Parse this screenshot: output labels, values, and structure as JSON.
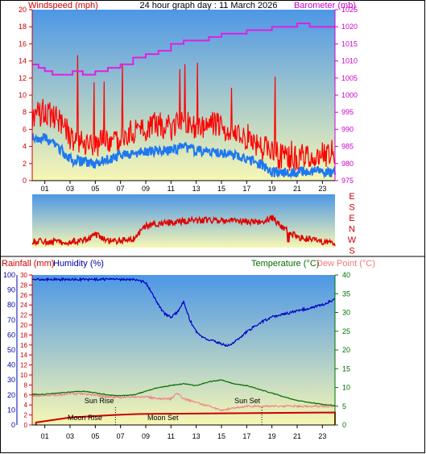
{
  "header": {
    "title": "24 hour graph day : 11 March 2026",
    "left_axis_label": "Windspeed (mph)",
    "right_axis_label": "Barometer (mb)"
  },
  "bottom_header": {
    "rainfall_label": "Rainfall (mm)",
    "humidity_label": "Humidity (%)",
    "temperature_label": "Temperature (°C)",
    "dewpoint_label": "Dew Point (°C)"
  },
  "direction_labels": [
    "E",
    "S",
    "E",
    "N",
    "W",
    "S"
  ],
  "events": {
    "sun_rise": "Sun Rise",
    "sun_set": "Sun Set",
    "moon_rise": "Moon Rise",
    "moon_set": "Moon Set"
  },
  "colors": {
    "wind_gust": "#ff0000",
    "wind_avg": "#1e78f0",
    "barometer": "#e020e0",
    "direction": "#e00000",
    "humidity": "#0000c0",
    "temperature": "#007000",
    "dewpoint": "#ee8888",
    "rainfall": "#cc0000",
    "sky_top": "#4d97e6",
    "sky_bottom": "#f7f7b4"
  },
  "chart_data": [
    {
      "type": "line",
      "name": "wind-barometer",
      "x_ticks": [
        "01",
        "03",
        "05",
        "07",
        "09",
        "11",
        "13",
        "15",
        "17",
        "19",
        "21",
        "23"
      ],
      "xlim": [
        0,
        24
      ],
      "left_axis": {
        "ylim": [
          0,
          20
        ],
        "ticks": [
          0,
          2,
          4,
          6,
          8,
          10,
          12,
          14,
          16,
          18,
          20
        ]
      },
      "right_axis": {
        "ylim": [
          975,
          1025
        ],
        "ticks": [
          975,
          980,
          985,
          990,
          995,
          1000,
          1005,
          1010,
          1015,
          1020,
          1025
        ]
      },
      "barometer_points": [
        [
          0,
          1009
        ],
        [
          0.5,
          1008
        ],
        [
          1,
          1007
        ],
        [
          1.6,
          1006
        ],
        [
          2.5,
          1006
        ],
        [
          3.2,
          1007
        ],
        [
          4,
          1006
        ],
        [
          5,
          1007
        ],
        [
          6,
          1008
        ],
        [
          7,
          1009
        ],
        [
          8,
          1011
        ],
        [
          9,
          1012
        ],
        [
          10,
          1013
        ],
        [
          11,
          1015
        ],
        [
          12,
          1016
        ],
        [
          13,
          1016
        ],
        [
          14,
          1017
        ],
        [
          15,
          1018
        ],
        [
          16,
          1018
        ],
        [
          17,
          1019
        ],
        [
          18,
          1019
        ],
        [
          19,
          1020
        ],
        [
          20,
          1020
        ],
        [
          21,
          1021
        ],
        [
          22,
          1020
        ],
        [
          24,
          1020
        ]
      ],
      "gust_profile": [
        [
          0,
          7
        ],
        [
          1,
          8
        ],
        [
          2,
          7
        ],
        [
          3,
          5
        ],
        [
          4,
          4.5
        ],
        [
          5,
          4
        ],
        [
          6,
          4.5
        ],
        [
          7,
          5
        ],
        [
          8,
          5.5
        ],
        [
          9,
          6
        ],
        [
          10,
          6.5
        ],
        [
          11,
          6
        ],
        [
          12,
          6.5
        ],
        [
          13,
          6
        ],
        [
          14,
          6.5
        ],
        [
          15,
          6
        ],
        [
          16,
          5.5
        ],
        [
          17,
          5
        ],
        [
          18,
          4
        ],
        [
          19,
          3
        ],
        [
          20,
          2.5
        ],
        [
          21,
          2.5
        ],
        [
          22,
          3
        ],
        [
          23,
          3
        ],
        [
          24,
          3
        ]
      ],
      "avg_profile": [
        [
          0,
          5
        ],
        [
          1,
          5
        ],
        [
          2,
          4
        ],
        [
          3,
          2.5
        ],
        [
          4,
          2.2
        ],
        [
          5,
          2
        ],
        [
          6,
          2.5
        ],
        [
          7,
          3
        ],
        [
          8,
          3.2
        ],
        [
          9,
          3.5
        ],
        [
          10,
          3.5
        ],
        [
          11,
          3.5
        ],
        [
          12,
          4
        ],
        [
          13,
          3.5
        ],
        [
          14,
          3.5
        ],
        [
          15,
          3.2
        ],
        [
          16,
          3
        ],
        [
          17,
          2.5
        ],
        [
          18,
          2
        ],
        [
          19,
          1
        ],
        [
          20,
          1
        ],
        [
          21,
          1
        ],
        [
          22,
          1.2
        ],
        [
          23,
          1
        ],
        [
          24,
          1
        ]
      ]
    },
    {
      "type": "line",
      "name": "wind-direction",
      "y_ticks": [
        "E",
        "S",
        "E",
        "N",
        "W",
        "S"
      ],
      "direction_profile": [
        [
          0,
          0.12
        ],
        [
          2,
          0.1
        ],
        [
          4,
          0.12
        ],
        [
          5,
          0.25
        ],
        [
          6,
          0.12
        ],
        [
          8,
          0.15
        ],
        [
          9,
          0.4
        ],
        [
          10,
          0.45
        ],
        [
          12,
          0.5
        ],
        [
          14,
          0.52
        ],
        [
          16,
          0.5
        ],
        [
          18,
          0.48
        ],
        [
          19,
          0.55
        ],
        [
          20,
          0.35
        ],
        [
          21,
          0.2
        ],
        [
          22,
          0.15
        ],
        [
          24,
          0.08
        ]
      ]
    },
    {
      "type": "line",
      "name": "rain-humidity-temperature",
      "left_axis_humidity": {
        "ylim": [
          0,
          100
        ],
        "ticks": [
          0,
          10,
          20,
          30,
          40,
          50,
          60,
          70,
          80,
          90,
          100
        ]
      },
      "left_axis_rain": {
        "ylim": [
          0,
          30
        ],
        "ticks": [
          0,
          2,
          4,
          6,
          8,
          10,
          12,
          14,
          16,
          18,
          20,
          22,
          24,
          26,
          28,
          30
        ]
      },
      "right_axis_temperature": {
        "ylim": [
          0,
          40
        ],
        "ticks": [
          0,
          5,
          10,
          15,
          20,
          25,
          30,
          35,
          40
        ]
      },
      "humidity_points": [
        [
          0,
          97
        ],
        [
          2,
          97
        ],
        [
          4,
          97
        ],
        [
          6,
          97
        ],
        [
          8,
          97
        ],
        [
          9,
          95
        ],
        [
          9.5,
          88
        ],
        [
          10,
          80
        ],
        [
          10.5,
          74
        ],
        [
          11,
          72
        ],
        [
          11.5,
          75
        ],
        [
          12,
          82
        ],
        [
          12.5,
          70
        ],
        [
          13,
          62
        ],
        [
          13.5,
          58
        ],
        [
          14,
          57
        ],
        [
          15,
          54
        ],
        [
          15.5,
          53
        ],
        [
          16,
          55
        ],
        [
          17,
          62
        ],
        [
          18,
          68
        ],
        [
          19,
          72
        ],
        [
          20,
          74
        ],
        [
          21,
          76
        ],
        [
          22,
          78
        ],
        [
          23,
          80
        ],
        [
          24,
          84
        ]
      ],
      "temperature_points": [
        [
          0,
          8.2
        ],
        [
          1,
          8.2
        ],
        [
          2,
          8.5
        ],
        [
          3,
          8.8
        ],
        [
          4,
          9
        ],
        [
          5,
          8.6
        ],
        [
          6,
          8
        ],
        [
          7,
          7.8
        ],
        [
          8,
          8
        ],
        [
          9,
          9
        ],
        [
          10,
          10
        ],
        [
          11,
          10.5
        ],
        [
          12,
          11
        ],
        [
          13,
          10.5
        ],
        [
          14,
          11.5
        ],
        [
          15,
          12
        ],
        [
          16,
          11
        ],
        [
          17,
          10.5
        ],
        [
          18,
          9.5
        ],
        [
          19,
          8.5
        ],
        [
          20,
          7.5
        ],
        [
          21,
          6.5
        ],
        [
          22,
          6
        ],
        [
          23,
          5.5
        ],
        [
          24,
          5.2
        ]
      ],
      "dewpoint_points": [
        [
          0,
          7.8
        ],
        [
          2,
          8
        ],
        [
          3,
          8.3
        ],
        [
          4,
          8.3
        ],
        [
          5,
          8
        ],
        [
          6,
          7.5
        ],
        [
          7,
          7.3
        ],
        [
          8,
          7.5
        ],
        [
          9,
          7.5
        ],
        [
          10,
          7
        ],
        [
          11,
          7
        ],
        [
          11.5,
          8.5
        ],
        [
          12,
          7
        ],
        [
          13,
          6
        ],
        [
          14,
          5
        ],
        [
          15,
          4
        ],
        [
          16,
          4.5
        ],
        [
          17,
          5
        ],
        [
          18,
          5
        ],
        [
          19,
          5
        ],
        [
          20,
          5
        ],
        [
          21,
          5
        ],
        [
          22,
          5
        ],
        [
          23,
          5
        ],
        [
          24,
          5
        ]
      ],
      "rainfall_points": [
        [
          0.3,
          0
        ],
        [
          0.3,
          0.5
        ],
        [
          3,
          1.5
        ],
        [
          6.5,
          2
        ],
        [
          8.5,
          2.2
        ],
        [
          24,
          2.5
        ],
        [
          24,
          0
        ]
      ],
      "sun_rise_hour": 6.6,
      "sun_set_hour": 18.2
    }
  ]
}
